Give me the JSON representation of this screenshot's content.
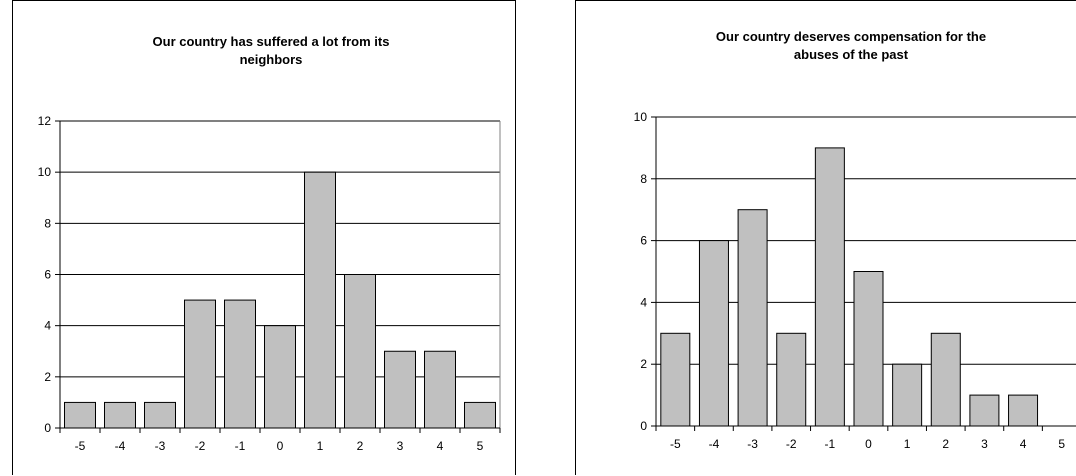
{
  "chart_data": [
    {
      "type": "bar",
      "title_lines": [
        "Our country has suffered a lot from its",
        "neighbors"
      ],
      "categories": [
        "-5",
        "-4",
        "-3",
        "-2",
        "-1",
        "0",
        "1",
        "2",
        "3",
        "4",
        "5"
      ],
      "values": [
        1,
        1,
        1,
        5,
        5,
        4,
        10,
        6,
        3,
        3,
        1
      ],
      "ylim": [
        0,
        12
      ],
      "yticks": [
        0,
        2,
        4,
        6,
        8,
        10,
        12
      ],
      "grid": true,
      "legend": "none",
      "bar_color": "#c0c0c0",
      "edge_color": "#000000"
    },
    {
      "type": "bar",
      "title_lines": [
        "Our country deserves compensation for the",
        "abuses of the past"
      ],
      "categories": [
        "-5",
        "-4",
        "-3",
        "-2",
        "-1",
        "0",
        "1",
        "2",
        "3",
        "4",
        "5"
      ],
      "values": [
        3,
        6,
        7,
        3,
        9,
        5,
        2,
        3,
        1,
        1,
        0
      ],
      "ylim": [
        0,
        10
      ],
      "yticks": [
        0,
        2,
        4,
        6,
        8,
        10
      ],
      "grid": true,
      "legend": "none",
      "bar_color": "#c0c0c0",
      "edge_color": "#000000"
    }
  ]
}
